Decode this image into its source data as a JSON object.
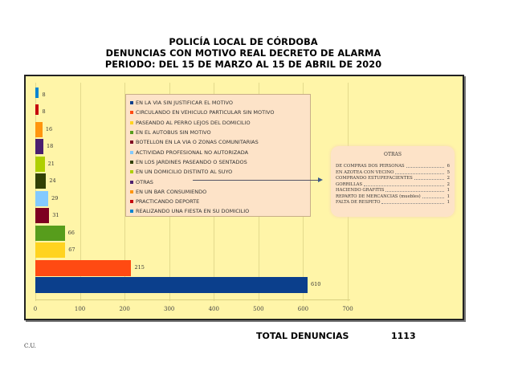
{
  "header": {
    "line1": "POLICÍA LOCAL DE CÓRDOBA",
    "line2": "DENUNCIAS CON MOTIVO REAL DECRETO DE ALARMA",
    "line3": "PERIODO: DEL 15 DE MARZO AL 15 DE ABRIL DE 2020"
  },
  "total": {
    "label": "TOTAL DENUNCIAS",
    "value": "1113"
  },
  "footer": {
    "initials": "C.U."
  },
  "legend": [
    {
      "label": "EN LA VIA SIN JUSTIFICAR EL MOTIVO",
      "color": "#0b3f8c"
    },
    {
      "label": "CIRCULANDO EN VEHICULO PARTICULAR SIN MOTIVO",
      "color": "#ff4a12"
    },
    {
      "label": "PASEANDO AL PERRO LEJOS DEL DOMICILIO",
      "color": "#ffd320"
    },
    {
      "label": "EN EL AUTOBUS SIN MOTIVO",
      "color": "#579d1c"
    },
    {
      "label": "BOTELLON EN LA VIA O ZONAS COMUNITARIAS",
      "color": "#7e0021"
    },
    {
      "label": "ACTIVIDAD PROFESIONAL NO AUTORIZADA",
      "color": "#83caff"
    },
    {
      "label": "EN LOS JARDINES PASEANDO O SENTADOS",
      "color": "#314004"
    },
    {
      "label": "EN UN DOMICILIO DISTINTO AL SUYO",
      "color": "#aecf00"
    },
    {
      "label": "OTRAS",
      "color": "#4b1f6f"
    },
    {
      "label": "EN UN BAR CONSUMIENDO",
      "color": "#ff950e"
    },
    {
      "label": "PRACTICANDO DEPORTE",
      "color": "#c5000b"
    },
    {
      "label": "REALIZANDO UNA FIESTA EN SU DOMICILIO",
      "color": "#0084d1"
    }
  ],
  "otras_box": {
    "title": "OTRAS",
    "rows": [
      {
        "name": "DE COMPRAS DOS PERSONAS",
        "value": "6"
      },
      {
        "name": "EN AZOTEA CON VECINO",
        "value": "5"
      },
      {
        "name": "COMPRANDO ESTUPEFACIENTES",
        "value": "2"
      },
      {
        "name": "GORRILLAS",
        "value": "2"
      },
      {
        "name": "HACIENDO GRAFITIS",
        "value": "1"
      },
      {
        "name": "REPARTO DE MERCANCIAS (muebles)",
        "value": "1"
      },
      {
        "name": "FALTA DE RESPETO",
        "value": "1"
      }
    ]
  },
  "axis": {
    "ticks": [
      "0",
      "100",
      "200",
      "300",
      "400",
      "500",
      "600",
      "700"
    ]
  },
  "chart_data": {
    "type": "bar",
    "orientation": "horizontal",
    "title": "POLICÍA LOCAL DE CÓRDOBA — DENUNCIAS CON MOTIVO REAL DECRETO DE ALARMA — PERIODO: DEL 15 DE MARZO AL 15 DE ABRIL DE 2020",
    "categories": [
      "EN LA VIA SIN JUSTIFICAR EL MOTIVO",
      "CIRCULANDO EN VEHICULO PARTICULAR SIN MOTIVO",
      "PASEANDO AL PERRO LEJOS DEL DOMICILIO",
      "EN EL AUTOBUS SIN MOTIVO",
      "BOTELLON EN LA VIA O ZONAS COMUNITARIAS",
      "ACTIVIDAD PROFESIONAL NO AUTORIZADA",
      "EN LOS JARDINES PASEANDO O SENTADOS",
      "EN UN DOMICILIO DISTINTO AL SUYO",
      "OTRAS",
      "EN UN BAR CONSUMIENDO",
      "PRACTICANDO DEPORTE",
      "REALIZANDO UNA FIESTA EN SU DOMICILIO"
    ],
    "values": [
      610,
      215,
      67,
      66,
      31,
      29,
      24,
      21,
      18,
      16,
      8,
      8
    ],
    "colors": [
      "#0b3f8c",
      "#ff4a12",
      "#ffd320",
      "#579d1c",
      "#7e0021",
      "#83caff",
      "#314004",
      "#aecf00",
      "#4b1f6f",
      "#ff950e",
      "#c5000b",
      "#0084d1"
    ],
    "xlabel": "",
    "ylabel": "",
    "xlim": [
      0,
      700
    ],
    "xticks": [
      0,
      100,
      200,
      300,
      400,
      500,
      600,
      700
    ],
    "grid": true,
    "legend_position": "inside-top-center",
    "data_labels": true,
    "annotation": {
      "title": "OTRAS",
      "breakdown": [
        {
          "name": "DE COMPRAS DOS PERSONAS",
          "value": 6
        },
        {
          "name": "EN AZOTEA CON VECINO",
          "value": 5
        },
        {
          "name": "COMPRANDO ESTUPEFACIENTES",
          "value": 2
        },
        {
          "name": "GORRILLAS",
          "value": 2
        },
        {
          "name": "HACIENDO GRAFITIS",
          "value": 1
        },
        {
          "name": "REPARTO DE MERCANCIAS (muebles)",
          "value": 1
        },
        {
          "name": "FALTA DE RESPETO",
          "value": 1
        }
      ]
    },
    "total": 1113
  }
}
